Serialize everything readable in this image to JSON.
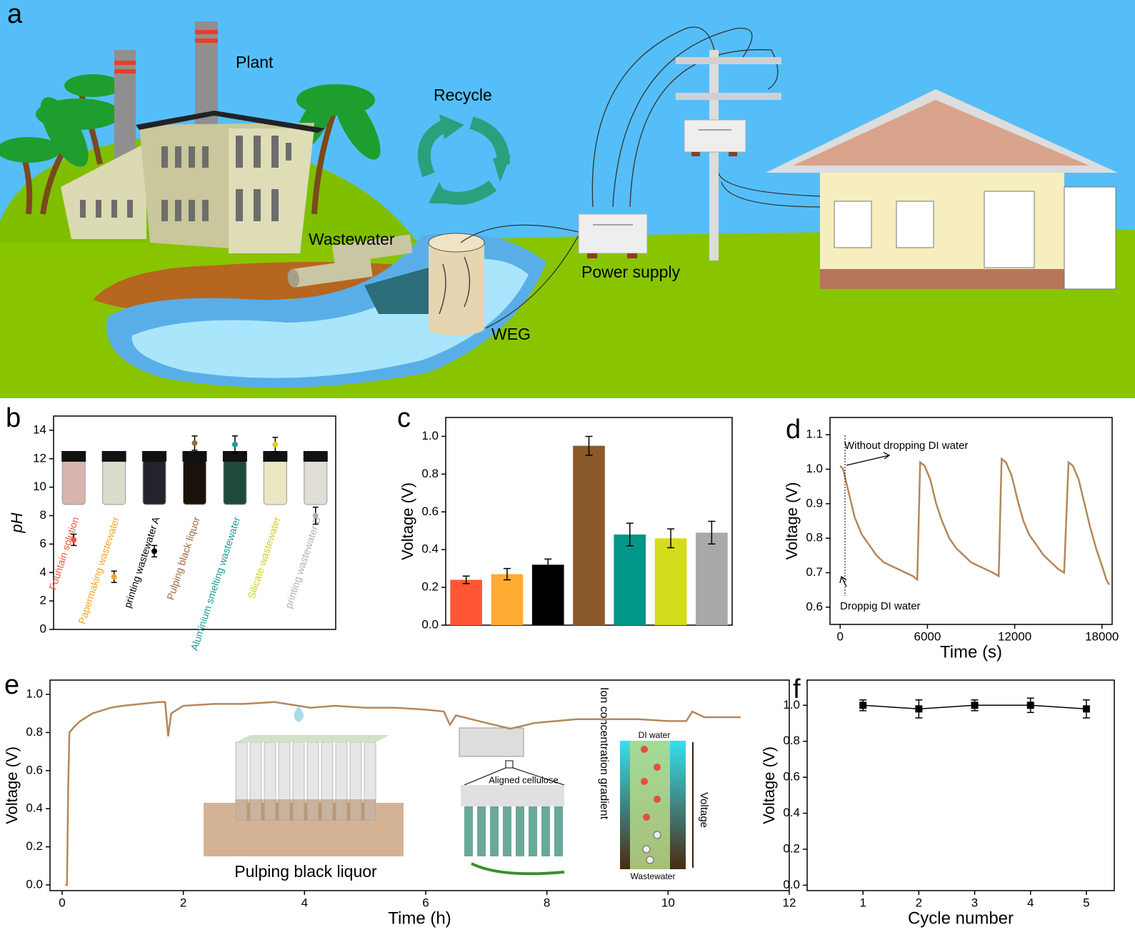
{
  "panel_labels": [
    "a",
    "b",
    "c",
    "d",
    "e",
    "f"
  ],
  "illustration": {
    "labels": [
      "Plant",
      "Recycle",
      "Wastewater",
      "Power supply",
      "WEG"
    ]
  },
  "chart_data": [
    {
      "type": "scatter",
      "ylabel": "pH",
      "categories": [
        "Fountain solution",
        "Papermaking wastewater",
        "printing wastewater A",
        "Pulping black liquor",
        "Aluminium smelting wastewater",
        "Silicate wastewater",
        "printing wastewater B"
      ],
      "values": [
        6.3,
        3.7,
        5.5,
        13.1,
        13.0,
        13.0,
        8.0
      ],
      "errors": [
        0.4,
        0.4,
        0.4,
        0.5,
        0.6,
        0.5,
        0.6
      ],
      "colors": [
        "#f2553a",
        "#f5a623",
        "#000000",
        "#9c6b3c",
        "#1a9e96",
        "#cfd21f",
        "#b0b0b0"
      ],
      "ylim": [
        0,
        15
      ],
      "yticks": [
        0,
        2,
        4,
        6,
        8,
        10,
        12,
        14
      ]
    },
    {
      "type": "bar",
      "ylabel": "Voltage (V)",
      "categories": [
        null,
        null,
        null,
        null,
        null,
        null,
        null
      ],
      "values": [
        0.24,
        0.27,
        0.32,
        0.95,
        0.48,
        0.46,
        0.49
      ],
      "errors": [
        0.02,
        0.03,
        0.03,
        0.05,
        0.06,
        0.05,
        0.06
      ],
      "colors": [
        "#ff5733",
        "#ffad33",
        "#000000",
        "#8b5a2b",
        "#009688",
        "#d4dc1c",
        "#a9a9a9"
      ],
      "ylim": [
        0,
        1.1
      ],
      "yticks": [
        {
          "value": 0,
          "label": "0.0"
        },
        0.2,
        0.4,
        0.6,
        0.8,
        {
          "value": 1,
          "label": "1.0"
        }
      ]
    },
    {
      "type": "line",
      "xlabel": "Time (s)",
      "ylabel": "Voltage (V)",
      "color": "#b5875a",
      "x": [
        0,
        200,
        600,
        1000,
        1500,
        2000,
        2500,
        3000,
        3500,
        4000,
        4500,
        5000,
        5300,
        5500,
        5800,
        6200,
        6600,
        7000,
        7500,
        8000,
        8500,
        9000,
        9500,
        10000,
        10500,
        10900,
        11100,
        11400,
        11800,
        12200,
        12600,
        13000,
        13500,
        14000,
        14500,
        15000,
        15400,
        15700,
        16000,
        16400,
        16800,
        17200,
        17600,
        18000,
        18300,
        18500
      ],
      "values": [
        1.01,
        1.0,
        0.93,
        0.86,
        0.81,
        0.78,
        0.75,
        0.73,
        0.72,
        0.71,
        0.7,
        0.69,
        0.68,
        1.02,
        1.01,
        0.97,
        0.9,
        0.85,
        0.8,
        0.77,
        0.75,
        0.73,
        0.72,
        0.71,
        0.7,
        0.69,
        1.03,
        1.02,
        0.98,
        0.91,
        0.85,
        0.81,
        0.78,
        0.75,
        0.73,
        0.71,
        0.7,
        1.02,
        1.01,
        0.97,
        0.9,
        0.83,
        0.77,
        0.72,
        0.68,
        0.665
      ],
      "xlim": [
        -700,
        18700
      ],
      "ylim": [
        0.55,
        1.15
      ],
      "xticks": [
        0,
        6000,
        12000,
        18000
      ],
      "yticks": [
        0.6,
        0.7,
        0.8,
        0.9,
        {
          "value": 1,
          "label": "1.0"
        },
        1.1
      ],
      "annotations": [
        "Without dropping DI water",
        "Droppig DI water"
      ]
    },
    {
      "type": "line",
      "xlabel": "Time (h)",
      "ylabel": "Voltage (V)",
      "color": "#b5875a",
      "x": [
        0.05,
        0.08,
        0.1,
        0.12,
        0.2,
        0.3,
        0.5,
        0.8,
        1.0,
        1.3,
        1.6,
        1.7,
        1.75,
        1.8,
        2.0,
        2.5,
        3.0,
        3.5,
        3.9,
        4.1,
        4.5,
        5.0,
        5.5,
        6.0,
        6.3,
        6.4,
        6.5,
        7.0,
        7.4,
        7.8,
        8.5,
        9.0,
        9.5,
        10.0,
        10.3,
        10.4,
        10.6,
        11.0,
        11.2
      ],
      "values": [
        0,
        0,
        0.5,
        0.8,
        0.83,
        0.86,
        0.9,
        0.93,
        0.94,
        0.95,
        0.96,
        0.96,
        0.78,
        0.9,
        0.94,
        0.95,
        0.95,
        0.96,
        0.94,
        0.93,
        0.94,
        0.93,
        0.93,
        0.92,
        0.91,
        0.84,
        0.89,
        0.85,
        0.82,
        0.85,
        0.87,
        0.87,
        0.87,
        0.86,
        0.86,
        0.91,
        0.88,
        0.88,
        0.88
      ],
      "xlim": [
        -0.2,
        12
      ],
      "ylim": [
        -0.03,
        1.075
      ],
      "xticks": [
        0,
        2,
        4,
        6,
        8,
        10,
        12
      ],
      "yticks": [
        {
          "value": 0,
          "label": "0.0"
        },
        0.2,
        0.4,
        0.6,
        0.8,
        {
          "value": 1,
          "label": "1.0"
        }
      ],
      "annotations": [
        "Pulping black liquor",
        "Aligned cellulose",
        "Ion concentration gradient",
        "DI water",
        "Wastewater",
        "Voltage"
      ]
    },
    {
      "type": "line",
      "xlabel": "Cycle number",
      "ylabel": "Voltage (V)",
      "color": "#000000",
      "markers": true,
      "x": [
        1,
        2,
        3,
        4,
        5
      ],
      "values": [
        1.0,
        0.98,
        1.0,
        1.0,
        0.98
      ],
      "errors": [
        0.03,
        0.05,
        0.03,
        0.04,
        0.05
      ],
      "xlim": [
        0,
        5.5
      ],
      "ylim": [
        -0.03,
        1.14
      ],
      "xticks": [
        1,
        2,
        3,
        4,
        5
      ],
      "yticks": [
        {
          "value": 0,
          "label": "0.0"
        },
        0.2,
        0.4,
        0.6,
        0.8,
        {
          "value": 1,
          "label": "1.0"
        }
      ]
    }
  ]
}
